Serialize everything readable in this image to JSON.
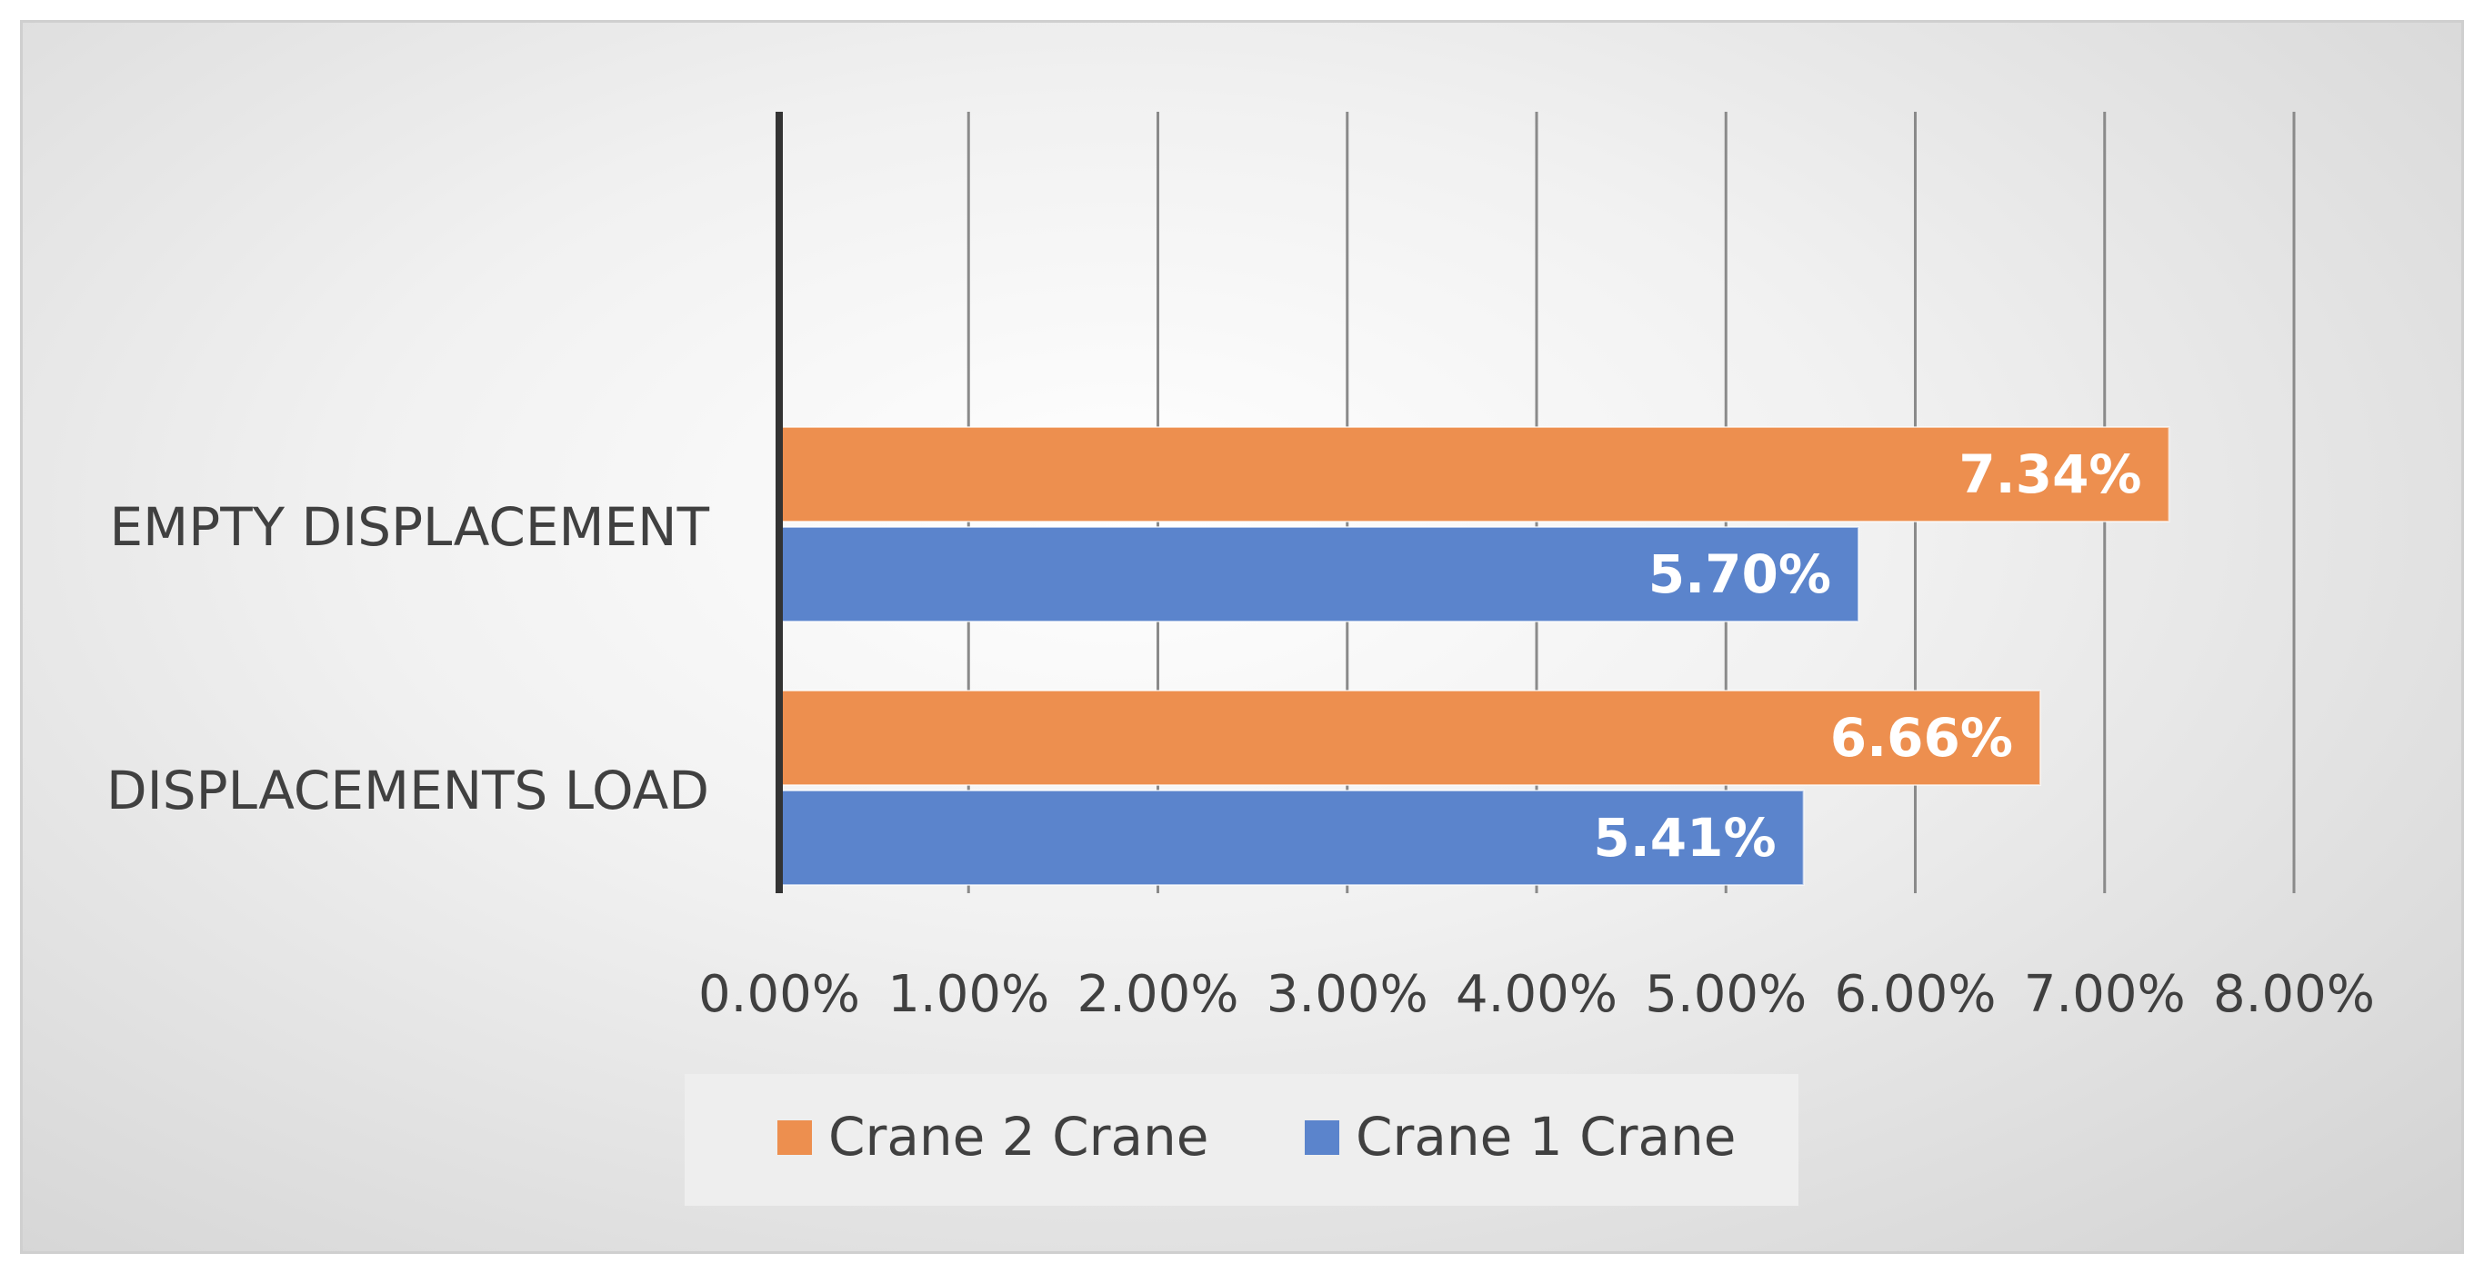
{
  "chart_data": {
    "type": "bar",
    "orientation": "horizontal",
    "title": "",
    "xlabel": "",
    "ylabel": "",
    "categories": [
      "EMPTY DISPLACEMENT",
      "DISPLACEMENTS LOAD"
    ],
    "series": [
      {
        "name": "Crane 2 Crane",
        "color": "#ED8F4F",
        "values": [
          7.34,
          6.66
        ],
        "labels": [
          "7.34%",
          "6.66%"
        ]
      },
      {
        "name": "Crane 1 Crane",
        "color": "#5B84CC",
        "values": [
          5.7,
          5.41
        ],
        "labels": [
          "5.70%",
          "5.41%"
        ]
      }
    ],
    "xlim": [
      0,
      8
    ],
    "xticks": [
      "0.00%",
      "1.00%",
      "2.00%",
      "3.00%",
      "4.00%",
      "5.00%",
      "6.00%",
      "7.00%",
      "8.00%"
    ],
    "grid": "vertical",
    "legend": "bottom"
  }
}
